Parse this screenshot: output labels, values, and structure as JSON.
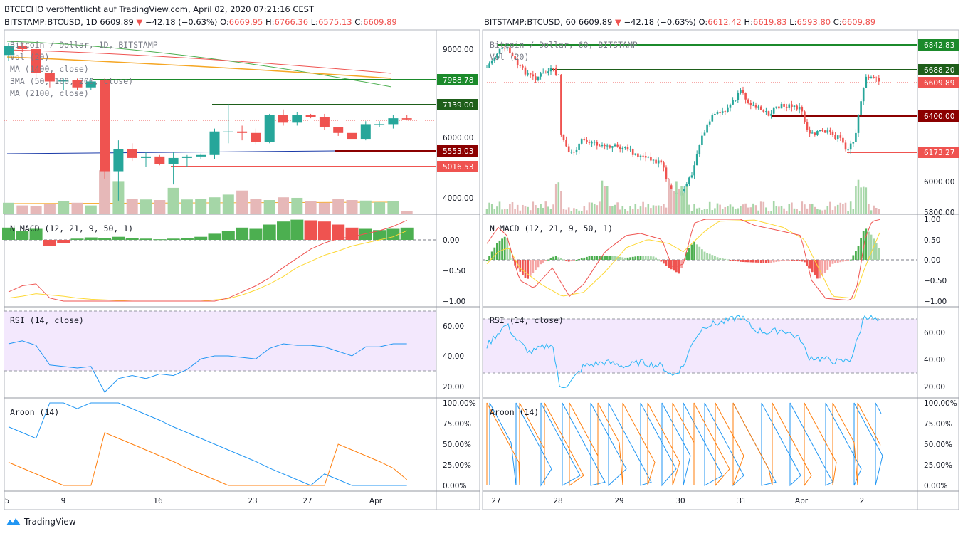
{
  "header": {
    "line1": "BTCECHO veröffentlicht auf TradingView.com, April 02, 2020 07:21:16 CEST",
    "left": {
      "symbol": "BITSTAMP:BTCUSD, 1D 6609.89",
      "arrow": "▼",
      "change": "−42.18 (−0.63%)",
      "o_label": "O:",
      "o": "6669.95",
      "h_label": "H:",
      "h": "6766.36",
      "l_label": "L:",
      "l": "6575.13",
      "c_label": "C:",
      "c": "6609.89"
    },
    "right": {
      "symbol": "BITSTAMP:BTCUSD, 60 6609.89",
      "arrow": "▼",
      "change": "−42.18 (−0.63%)",
      "o_label": "O:",
      "o": "6612.42",
      "h_label": "H:",
      "h": "6619.83",
      "l_label": "L:",
      "l": "6593.80",
      "c_label": "C:",
      "c": "6609.89"
    }
  },
  "brand": {
    "name": "TradingView"
  },
  "colors": {
    "up": "#26a69a",
    "down": "#ef5350",
    "green_line": "#1b8a2b",
    "dark_green": "#1e5e1a",
    "dark_red": "#8b0000",
    "rsi_band": "#f3e8fd",
    "aroon_up": "#ff7f0e",
    "aroon_down": "#2196f3"
  },
  "chart_data": [
    {
      "type": "candlestick",
      "panel": "left-price",
      "legend": [
        "Bitcoin / Dollar, 1D, BITSTAMP",
        "Vol (20)",
        "MA (1400, close)",
        "3MA (50, 100, 200, close)",
        "MA (2100, close)"
      ],
      "y_ticks": [
        "9000.00",
        "6000.00",
        "4000.00"
      ],
      "x_ticks": [
        "5",
        "9",
        "16",
        "23",
        "27",
        "Apr"
      ],
      "price_tags": [
        {
          "value": "7988.78",
          "color": "#1b8a2b"
        },
        {
          "value": "7139.00",
          "color": "#1e5e1a"
        },
        {
          "value": "5553.03",
          "color": "#8b0000"
        },
        {
          "value": "5016.53",
          "color": "#ef5350"
        }
      ],
      "candles": [
        {
          "o": 8800,
          "h": 9200,
          "l": 8600,
          "c": 9100
        },
        {
          "o": 9100,
          "h": 9200,
          "l": 8900,
          "c": 9000
        },
        {
          "o": 9000,
          "h": 9150,
          "l": 8000,
          "c": 8200
        },
        {
          "o": 8200,
          "h": 8200,
          "l": 7700,
          "c": 7900
        },
        {
          "o": 7900,
          "h": 8000,
          "l": 7600,
          "c": 7950
        },
        {
          "o": 7950,
          "h": 8000,
          "l": 7600,
          "c": 7700
        },
        {
          "o": 7700,
          "h": 8000,
          "l": 7600,
          "c": 7900
        },
        {
          "o": 7950,
          "h": 8000,
          "l": 4600,
          "c": 4850
        },
        {
          "o": 4850,
          "h": 5900,
          "l": 3850,
          "c": 5600
        },
        {
          "o": 5600,
          "h": 5800,
          "l": 5200,
          "c": 5300
        },
        {
          "o": 5300,
          "h": 5500,
          "l": 5000,
          "c": 5350
        },
        {
          "o": 5350,
          "h": 5400,
          "l": 5050,
          "c": 5100
        },
        {
          "o": 5100,
          "h": 5500,
          "l": 4400,
          "c": 5300
        },
        {
          "o": 5300,
          "h": 5400,
          "l": 5000,
          "c": 5350
        },
        {
          "o": 5350,
          "h": 5450,
          "l": 5250,
          "c": 5400
        },
        {
          "o": 5400,
          "h": 6300,
          "l": 5250,
          "c": 6200
        },
        {
          "o": 6200,
          "h": 7139,
          "l": 5800,
          "c": 6200
        },
        {
          "o": 6200,
          "h": 6400,
          "l": 5900,
          "c": 6150
        },
        {
          "o": 6150,
          "h": 6300,
          "l": 5750,
          "c": 5850
        },
        {
          "o": 5850,
          "h": 6800,
          "l": 5800,
          "c": 6750
        },
        {
          "o": 6750,
          "h": 6950,
          "l": 6400,
          "c": 6500
        },
        {
          "o": 6500,
          "h": 6850,
          "l": 6400,
          "c": 6750
        },
        {
          "o": 6750,
          "h": 6800,
          "l": 6650,
          "c": 6700
        },
        {
          "o": 6700,
          "h": 6800,
          "l": 6250,
          "c": 6350
        },
        {
          "o": 6350,
          "h": 6350,
          "l": 6050,
          "c": 6150
        },
        {
          "o": 6150,
          "h": 6250,
          "l": 5900,
          "c": 5950
        },
        {
          "o": 5950,
          "h": 6550,
          "l": 5900,
          "c": 6450
        },
        {
          "o": 6450,
          "h": 6550,
          "l": 6350,
          "c": 6450
        },
        {
          "o": 6450,
          "h": 6750,
          "l": 6300,
          "c": 6650
        },
        {
          "o": 6650,
          "h": 6766,
          "l": 6575,
          "c": 6610
        }
      ],
      "volume": [
        40,
        30,
        28,
        35,
        45,
        40,
        30,
        160,
        120,
        55,
        52,
        50,
        95,
        52,
        55,
        60,
        70,
        85,
        55,
        50,
        60,
        58,
        45,
        40,
        55,
        50,
        48,
        42,
        45,
        10
      ]
    },
    {
      "type": "line",
      "panel": "left-macd",
      "legend": "N MACD (12, 21, 9, 50, 1)",
      "y_ticks": [
        "0.00",
        "−0.50",
        "−1.00"
      ],
      "histogram": [
        0.2,
        0.15,
        0.18,
        -0.1,
        -0.05,
        0.02,
        0.04,
        0.03,
        0.05,
        0.03,
        0.02,
        0.01,
        0.02,
        0.03,
        0.05,
        0.1,
        0.14,
        0.2,
        0.18,
        0.25,
        0.3,
        0.33,
        0.32,
        0.3,
        0.25,
        0.2,
        0.18,
        0.16,
        0.18,
        0.2
      ],
      "macd": [
        -0.85,
        -0.75,
        -0.72,
        -0.95,
        -1.0,
        -1.0,
        -1.0,
        -1.0,
        -1.0,
        -1.0,
        -1.0,
        -1.0,
        -1.0,
        -1.0,
        -1.0,
        -1.0,
        -0.95,
        -0.85,
        -0.75,
        -0.62,
        -0.45,
        -0.3,
        -0.15,
        -0.05,
        0.02,
        0.05,
        0.1,
        0.15,
        0.22,
        0.32
      ],
      "signal": [
        -0.95,
        -0.92,
        -0.88,
        -0.9,
        -0.92,
        -0.95,
        -0.97,
        -0.98,
        -0.99,
        -1.0,
        -1.0,
        -1.0,
        -1.0,
        -1.0,
        -1.0,
        -0.98,
        -0.96,
        -0.9,
        -0.82,
        -0.72,
        -0.6,
        -0.45,
        -0.35,
        -0.25,
        -0.18,
        -0.1,
        -0.05,
        0.0,
        0.05,
        0.15
      ]
    },
    {
      "type": "line",
      "panel": "left-rsi",
      "legend": "RSI (14, close)",
      "y_ticks": [
        "60.00",
        "40.00",
        "20.00"
      ],
      "values": [
        48,
        50,
        47,
        34,
        33,
        32,
        33,
        16,
        25,
        27,
        25,
        28,
        27,
        31,
        38,
        40,
        40,
        39,
        38,
        45,
        48,
        47,
        47,
        46,
        43,
        40,
        46,
        46,
        48,
        48
      ]
    },
    {
      "type": "line",
      "panel": "left-aroon",
      "legend": "Aroon (14)",
      "y_ticks": [
        "100.00%",
        "75.00%",
        "50.00%",
        "25.00%",
        "0.00%"
      ],
      "aroon_up": [
        28,
        21,
        14,
        7,
        0,
        0,
        0,
        64,
        57,
        50,
        43,
        36,
        29,
        21,
        14,
        7,
        0,
        0,
        0,
        0,
        0,
        0,
        0,
        0,
        50,
        43,
        36,
        29,
        21,
        7
      ],
      "aroon_down": [
        71,
        64,
        57,
        100,
        100,
        93,
        100,
        100,
        100,
        93,
        86,
        79,
        71,
        64,
        57,
        50,
        43,
        36,
        29,
        21,
        14,
        7,
        0,
        14,
        7,
        0,
        0,
        0,
        0,
        0
      ]
    },
    {
      "type": "candlestick",
      "panel": "right-price",
      "legend": [
        "Bitcoin / Dollar, 60, BITSTAMP",
        "Vol (20)"
      ],
      "y_ticks": [
        "6000.00",
        "5800.00"
      ],
      "x_ticks": [
        "27",
        "28",
        "29",
        "30",
        "31",
        "Apr",
        "2"
      ],
      "price_tags": [
        {
          "value": "6842.83",
          "color": "#1b8a2b"
        },
        {
          "value": "6688.20",
          "color": "#1e5e1a"
        },
        {
          "value": "6609.89",
          "color": "#ef5350"
        },
        {
          "value": "6400.00",
          "color": "#8b0000"
        },
        {
          "value": "6173.27",
          "color": "#ef5350"
        }
      ]
    },
    {
      "type": "bar",
      "panel": "right-macd",
      "legend": "N MACD (12, 21, 9, 50, 1)",
      "y_ticks": [
        "1.00",
        "0.50",
        "0.00",
        "−0.50",
        "−1.00"
      ]
    },
    {
      "type": "line",
      "panel": "right-rsi",
      "legend": "RSI (14, close)",
      "y_ticks": [
        "60.00",
        "40.00",
        "20.00"
      ]
    },
    {
      "type": "line",
      "panel": "right-aroon",
      "legend": "Aroon (14)",
      "y_ticks": [
        "100.00%",
        "75.00%",
        "50.00%",
        "25.00%",
        "0.00%"
      ]
    }
  ]
}
